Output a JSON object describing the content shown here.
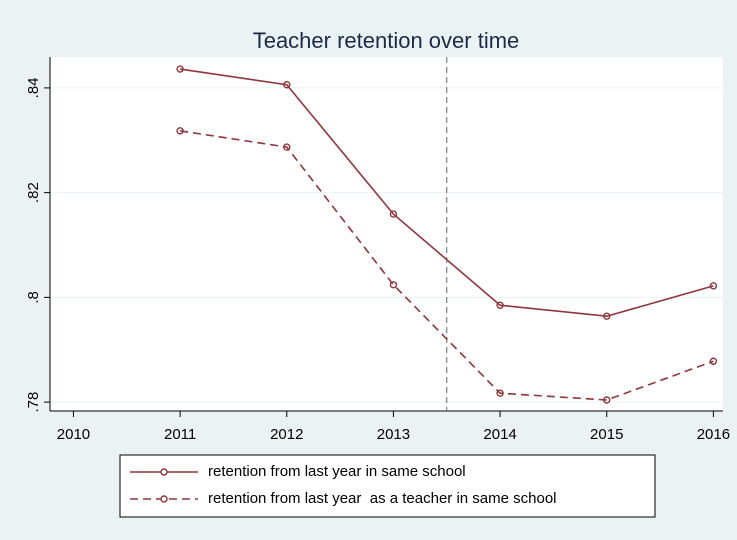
{
  "chart_data": {
    "type": "line",
    "title": "Teacher retention over time",
    "x": [
      2011,
      2012,
      2013,
      2014,
      2015,
      2016
    ],
    "series": [
      {
        "name": "retention from last year in same school",
        "color": "#90353b",
        "linestyle": "solid",
        "values": [
          0.8436,
          0.8406,
          0.8159,
          0.7985,
          0.7964,
          0.8022
        ]
      },
      {
        "name": "retention from last year  as a teacher in same school",
        "color": "#90353b",
        "linestyle": "dashed",
        "values": [
          0.8318,
          0.8287,
          0.8024,
          0.7817,
          0.7804,
          0.7878
        ]
      }
    ],
    "xlim": [
      2009.78,
      2016.09
    ],
    "xticks": [
      2010,
      2011,
      2012,
      2013,
      2014,
      2015,
      2016
    ],
    "ylim": [
      0.7783,
      0.8459
    ],
    "yticks": [
      {
        "value": 0.78,
        "label": ".78"
      },
      {
        "value": 0.8,
        "label": ".8"
      },
      {
        "value": 0.82,
        "label": ".82"
      },
      {
        "value": 0.84,
        "label": ".84"
      }
    ],
    "vline": 2013.5,
    "grid": true,
    "legend_position": "bottom"
  }
}
